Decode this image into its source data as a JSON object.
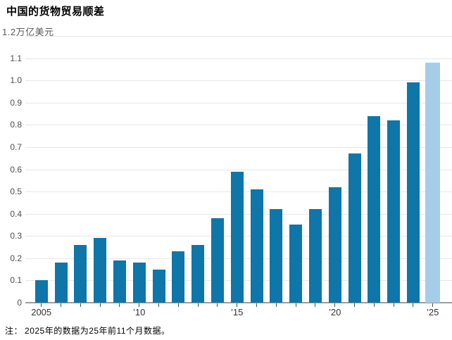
{
  "chart_data": {
    "type": "bar",
    "title": "中国的货物贸易顺差",
    "categories": [
      "2005",
      "2006",
      "2007",
      "2008",
      "2009",
      "2010",
      "2011",
      "2012",
      "2013",
      "2014",
      "2015",
      "2016",
      "2017",
      "2018",
      "2019",
      "2020",
      "2021",
      "2022",
      "2023",
      "2024",
      "2025"
    ],
    "values": [
      0.1,
      0.18,
      0.26,
      0.29,
      0.19,
      0.18,
      0.15,
      0.23,
      0.26,
      0.38,
      0.59,
      0.51,
      0.42,
      0.35,
      0.42,
      0.52,
      0.67,
      0.84,
      0.82,
      0.99,
      1.08
    ],
    "highlight_index": 20,
    "y_axis": {
      "ticks": [
        "0",
        "0.1",
        "0.2",
        "0.3",
        "0.4",
        "0.5",
        "0.6",
        "0.7",
        "0.8",
        "0.9",
        "1.0",
        "1.1",
        "1.2"
      ],
      "unit": "万亿美元",
      "min": 0,
      "max": 1.2,
      "grid": true
    },
    "x_axis": {
      "labels": [
        {
          "index": 0,
          "label": "2005"
        },
        {
          "index": 5,
          "label": "’10"
        },
        {
          "index": 10,
          "label": "’15"
        },
        {
          "index": 15,
          "label": "’20"
        },
        {
          "index": 20,
          "label": "’25"
        }
      ]
    },
    "note_prefix": "注：",
    "note": "2025年的数据为25年前11个月数据。",
    "colors": {
      "bar": "#0e76a8",
      "bar_highlight": "#a6cde8",
      "gridline": "#e7e7e7",
      "axis_line": "#9c9c9c",
      "tick": "#4d4d4d",
      "y_label": "#4d4d4d",
      "x_label": "#333333",
      "title": "#000000",
      "note": "#a6a6a6",
      "background": "#ffffff"
    }
  }
}
